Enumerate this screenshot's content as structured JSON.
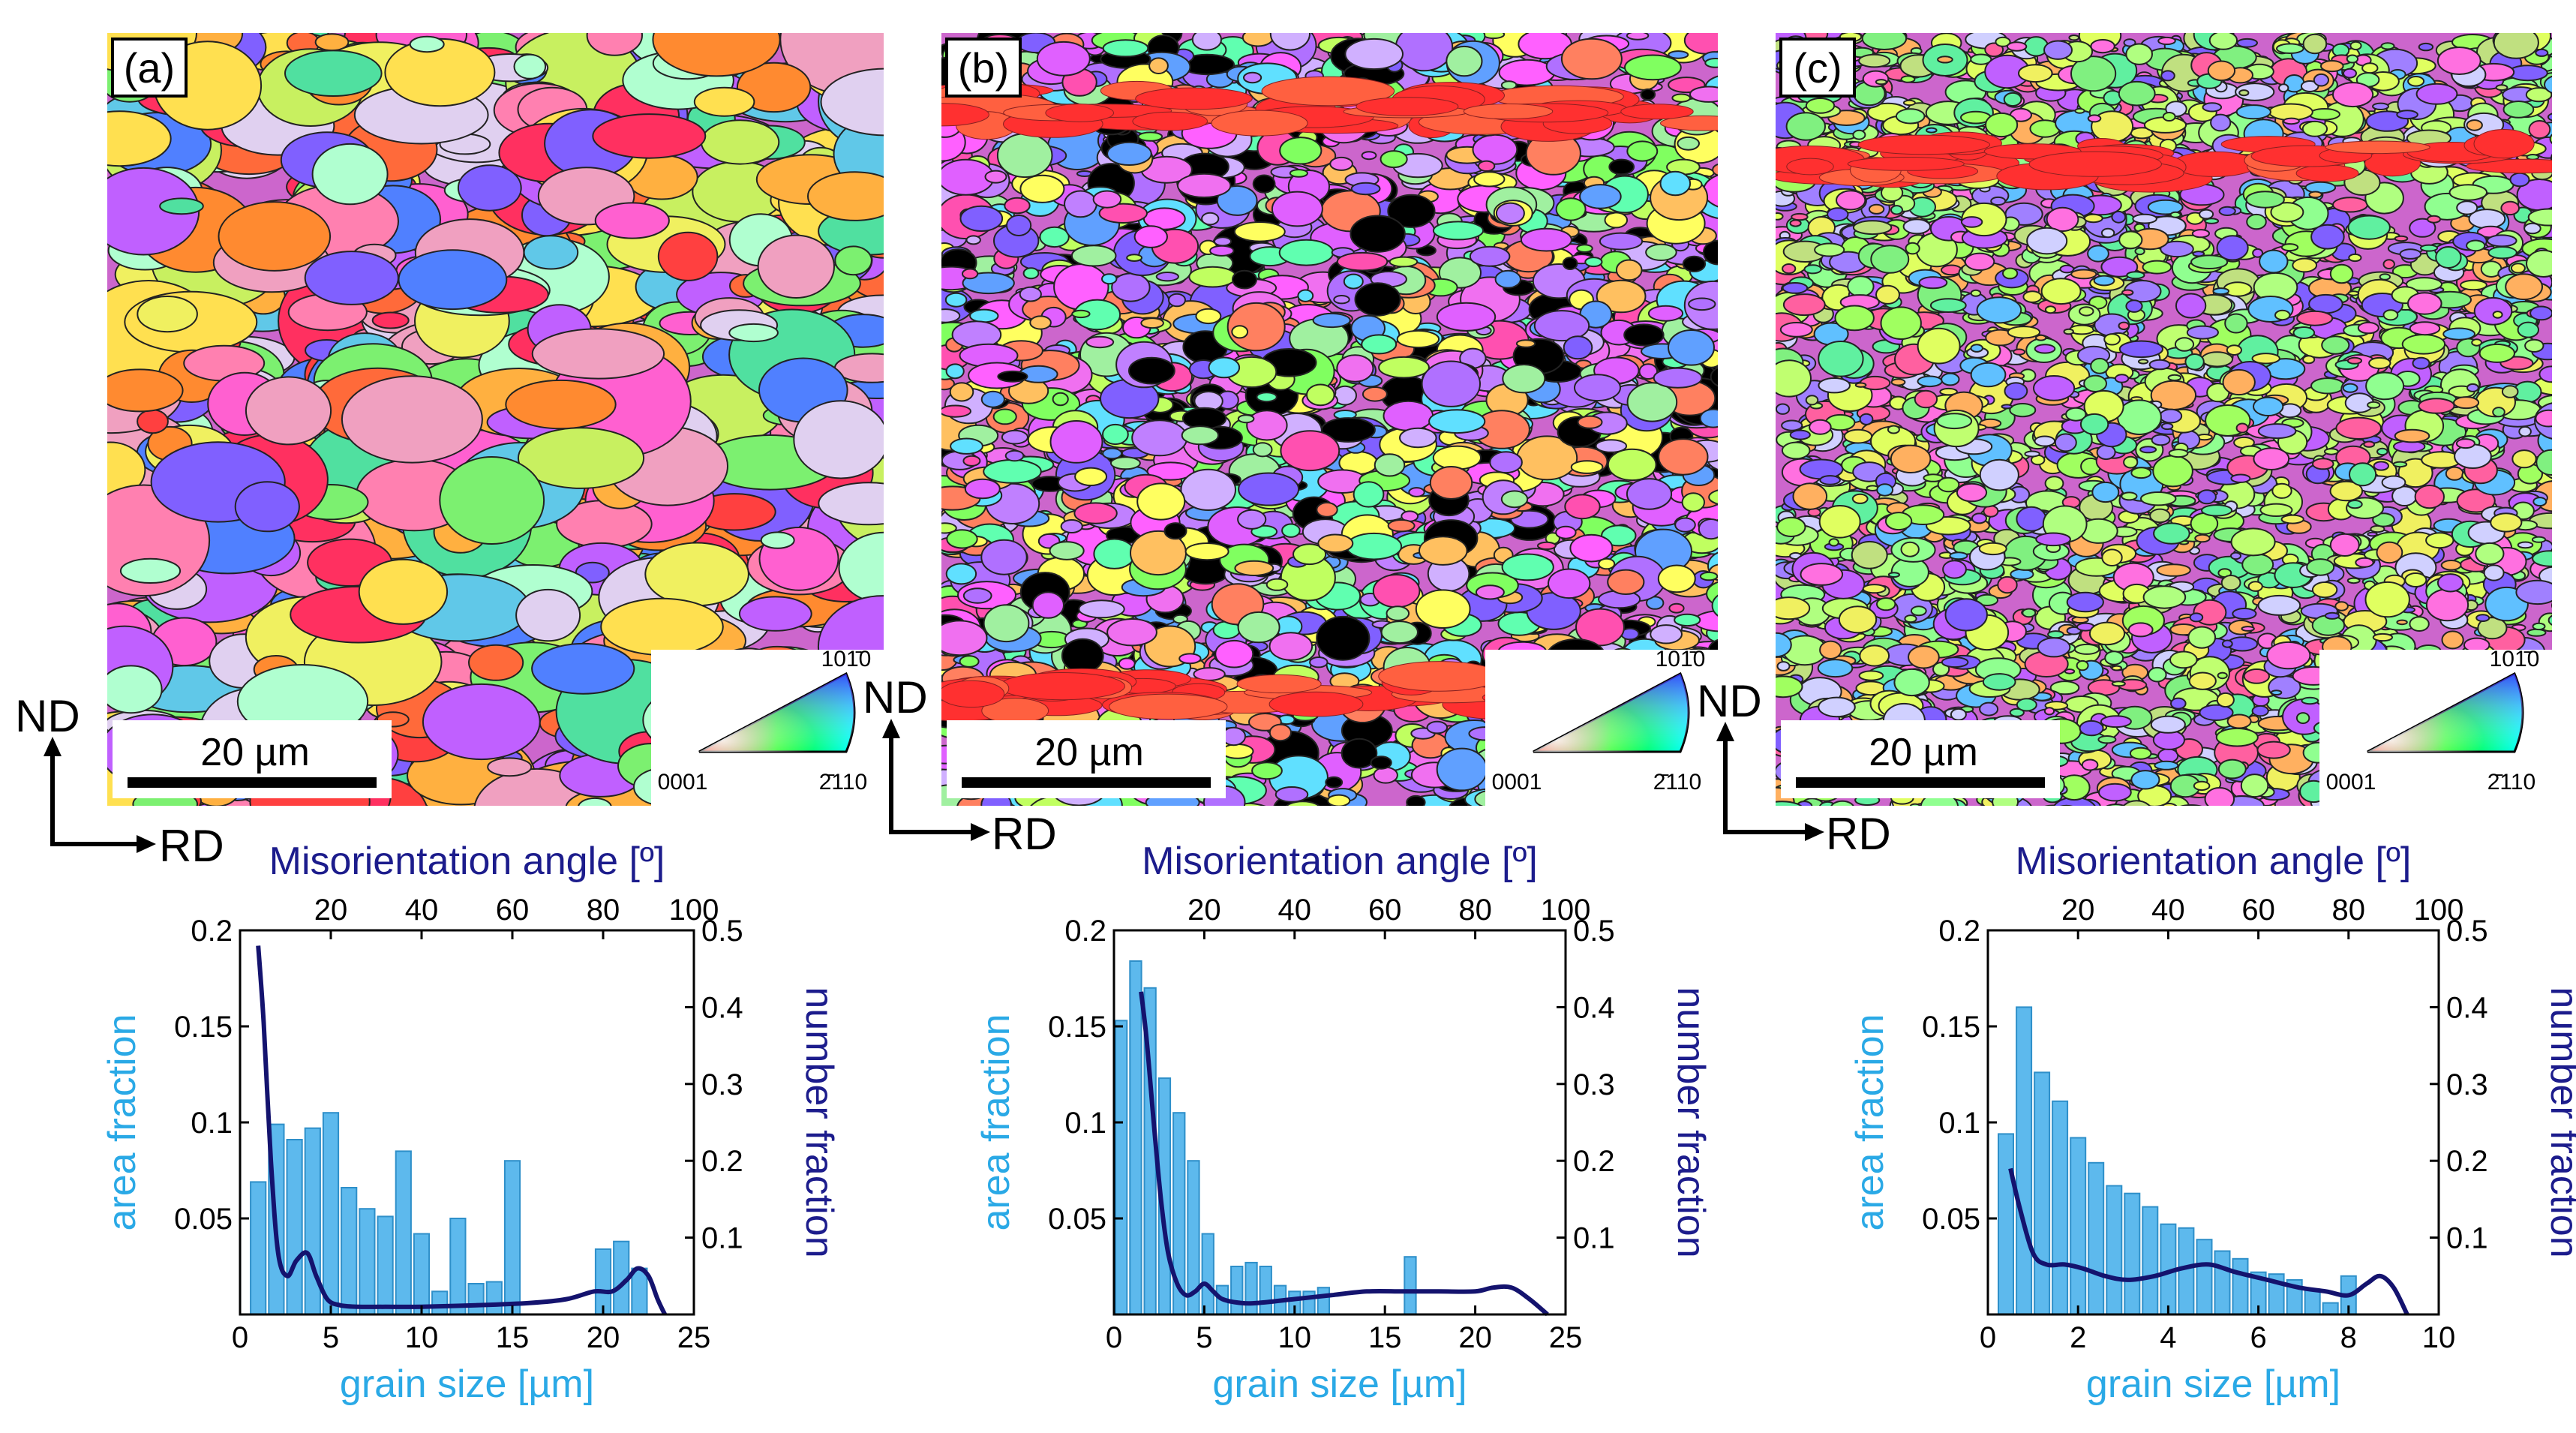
{
  "colors": {
    "bar_fill": "#5DB9ED",
    "bar_stroke": "#2E8FC9",
    "curve": "#14136E",
    "area_axis_label": "#2AA9E6",
    "number_axis_label": "#1C1C8C",
    "misorientation_label": "#1C1C8C",
    "axis": "#000000"
  },
  "orientation_axes": {
    "vertical": "ND",
    "horizontal": "RD"
  },
  "scale_bar_label": "20 µm",
  "ipf_key": {
    "corner_left": "0001",
    "corner_right": "2̄110",
    "corner_top": "101̄0"
  },
  "panels": [
    {
      "letter": "(a)",
      "pattern": "coarse"
    },
    {
      "letter": "(b)",
      "pattern": "fine"
    },
    {
      "letter": "(c)",
      "pattern": "finest"
    }
  ],
  "chart_data": [
    {
      "type": "bar",
      "panel": "(a)",
      "xlabel": "grain size [µm]",
      "ylabel": "area fraction",
      "y2label": "number fraction",
      "x2label": "Misorientation angle [º]",
      "xlim": [
        0,
        25
      ],
      "xticks": [
        0,
        5,
        10,
        15,
        20,
        25
      ],
      "ylim": [
        0,
        0.2
      ],
      "yticks": [
        0.05,
        0.1,
        0.15,
        0.2
      ],
      "y2lim": [
        0,
        0.5
      ],
      "y2ticks": [
        0.1,
        0.2,
        0.3,
        0.4,
        0.5
      ],
      "x2lim": [
        0,
        100
      ],
      "x2ticks": [
        20,
        40,
        60,
        80,
        100
      ],
      "bin_width": 1,
      "bar_x": [
        1,
        2,
        3,
        4,
        5,
        6,
        7,
        8,
        9,
        10,
        11,
        12,
        13,
        14,
        15,
        16,
        17,
        18,
        19,
        20,
        21,
        22,
        23
      ],
      "area_fraction": [
        0.069,
        0.099,
        0.091,
        0.097,
        0.105,
        0.066,
        0.055,
        0.051,
        0.085,
        0.042,
        0.012,
        0.05,
        0.016,
        0.017,
        0.08,
        0,
        0,
        0,
        0,
        0.034,
        0.038,
        0.024,
        0
      ],
      "number_fraction_curve": {
        "x": [
          1.0,
          1.3,
          1.7,
          2.1,
          2.6,
          3.1,
          3.7,
          4.2,
          4.8,
          5.5,
          6.5,
          8,
          10,
          13,
          16,
          18,
          19.5,
          20.5,
          21.3,
          21.9,
          22.5,
          23.0,
          23.4
        ],
        "y": [
          0.48,
          0.38,
          0.2,
          0.08,
          0.05,
          0.07,
          0.08,
          0.05,
          0.02,
          0.012,
          0.01,
          0.01,
          0.01,
          0.012,
          0.015,
          0.02,
          0.03,
          0.03,
          0.045,
          0.06,
          0.05,
          0.02,
          0.0
        ]
      }
    },
    {
      "type": "bar",
      "panel": "(b)",
      "xlabel": "grain size [µm]",
      "ylabel": "area fraction",
      "y2label": "number fraction",
      "x2label": "Misorientation angle [º]",
      "xlim": [
        0,
        25
      ],
      "xticks": [
        0,
        5,
        10,
        15,
        20,
        25
      ],
      "ylim": [
        0,
        0.2
      ],
      "yticks": [
        0.05,
        0.1,
        0.15,
        0.2
      ],
      "y2lim": [
        0,
        0.5
      ],
      "y2ticks": [
        0.1,
        0.2,
        0.3,
        0.4,
        0.5
      ],
      "x2lim": [
        0,
        100
      ],
      "x2ticks": [
        20,
        40,
        60,
        80,
        100
      ],
      "bin_width": 0.8,
      "bar_x": [
        0.4,
        1.2,
        2.0,
        2.8,
        3.6,
        4.4,
        5.2,
        6.0,
        6.8,
        7.6,
        8.4,
        9.2,
        10.0,
        10.8,
        11.6,
        16.4
      ],
      "area_fraction": [
        0.153,
        0.184,
        0.17,
        0.123,
        0.105,
        0.08,
        0.042,
        0.015,
        0.025,
        0.027,
        0.025,
        0.015,
        0.012,
        0.012,
        0.014,
        0.03
      ],
      "number_fraction_curve": {
        "x": [
          1.5,
          1.8,
          2.2,
          2.6,
          3.0,
          3.5,
          4.0,
          4.5,
          5.0,
          5.5,
          6.0,
          7,
          8,
          10,
          12,
          14,
          16,
          18,
          20,
          21,
          22,
          23,
          24
        ],
        "y": [
          0.42,
          0.36,
          0.25,
          0.15,
          0.08,
          0.04,
          0.025,
          0.03,
          0.04,
          0.03,
          0.02,
          0.015,
          0.015,
          0.02,
          0.025,
          0.03,
          0.03,
          0.03,
          0.03,
          0.035,
          0.035,
          0.02,
          0.0
        ]
      }
    },
    {
      "type": "bar",
      "panel": "(c)",
      "xlabel": "grain size [µm]",
      "ylabel": "area fraction",
      "y2label": "number fraction",
      "x2label": "Misorientation angle [º]",
      "xlim": [
        0,
        10
      ],
      "xticks": [
        0,
        2,
        4,
        6,
        8,
        10
      ],
      "ylim": [
        0,
        0.2
      ],
      "yticks": [
        0.05,
        0.1,
        0.15,
        0.2
      ],
      "y2lim": [
        0,
        0.5
      ],
      "y2ticks": [
        0.1,
        0.2,
        0.3,
        0.4,
        0.5
      ],
      "x2lim": [
        0,
        100
      ],
      "x2ticks": [
        20,
        40,
        60,
        80,
        100
      ],
      "bin_width": 0.4,
      "bar_x": [
        0.4,
        0.8,
        1.2,
        1.6,
        2.0,
        2.4,
        2.8,
        3.2,
        3.6,
        4.0,
        4.4,
        4.8,
        5.2,
        5.6,
        6.0,
        6.4,
        6.8,
        7.2,
        7.6,
        8.0
      ],
      "area_fraction": [
        0.094,
        0.16,
        0.126,
        0.111,
        0.092,
        0.079,
        0.067,
        0.063,
        0.056,
        0.047,
        0.045,
        0.039,
        0.033,
        0.029,
        0.022,
        0.021,
        0.018,
        0.013,
        0.006,
        0.02
      ],
      "number_fraction_curve": {
        "x": [
          0.5,
          0.7,
          1.0,
          1.3,
          1.7,
          2.1,
          2.6,
          3.1,
          3.7,
          4.3,
          4.9,
          5.5,
          6.2,
          6.9,
          7.5,
          8.0,
          8.4,
          8.7,
          9.0,
          9.3
        ],
        "y": [
          0.19,
          0.14,
          0.08,
          0.065,
          0.065,
          0.06,
          0.05,
          0.045,
          0.05,
          0.06,
          0.065,
          0.055,
          0.045,
          0.035,
          0.03,
          0.025,
          0.04,
          0.05,
          0.035,
          0.0
        ]
      }
    }
  ]
}
